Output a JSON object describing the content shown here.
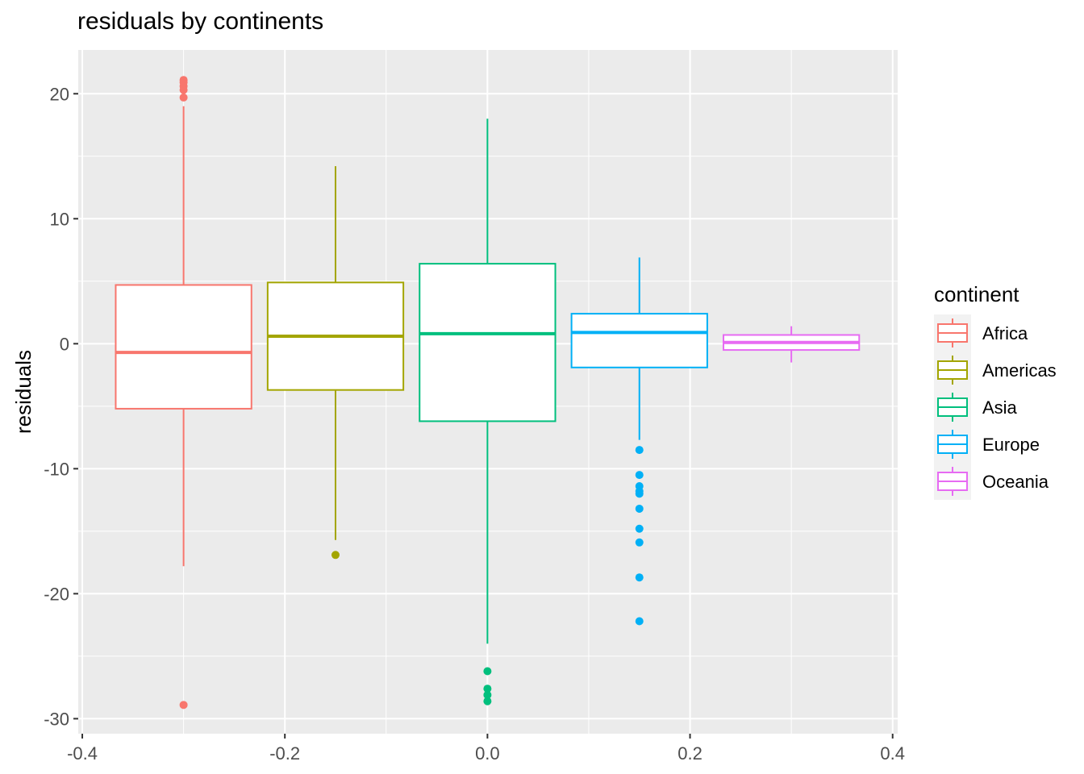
{
  "chart_data": {
    "type": "boxplot",
    "title": "residuals by continents",
    "xlabel": "",
    "ylabel": "residuals",
    "xlim": [
      -0.4,
      0.4
    ],
    "ylim": [
      -30,
      22.7
    ],
    "x_ticks": [
      -0.4,
      -0.2,
      0.0,
      0.2,
      0.4
    ],
    "x_tick_labels": [
      "-0.4",
      "-0.2",
      "0.0",
      "0.2",
      "0.4"
    ],
    "y_ticks": [
      20,
      10,
      0,
      -10,
      -20,
      -30
    ],
    "y_tick_labels": [
      "20",
      "10",
      "0",
      "-10",
      "-20",
      "-30"
    ],
    "grid": true,
    "legend": {
      "title": "continent",
      "position": "right"
    },
    "series": [
      {
        "name": "Africa",
        "color": "#F8766D",
        "x": -0.3,
        "whisker_low": -17.8,
        "q1": -5.2,
        "median": -0.7,
        "q3": 4.7,
        "whisker_high": 19.0,
        "outliers": [
          21.1,
          20.9,
          20.6,
          20.3,
          19.7,
          -28.9
        ]
      },
      {
        "name": "Americas",
        "color": "#A3A500",
        "x": -0.15,
        "whisker_low": -15.7,
        "q1": -3.7,
        "median": 0.6,
        "q3": 4.9,
        "whisker_high": 14.2,
        "outliers": [
          -16.9
        ]
      },
      {
        "name": "Asia",
        "color": "#00BF7D",
        "x": 0.0,
        "whisker_low": -24.0,
        "q1": -6.2,
        "median": 0.8,
        "q3": 6.4,
        "whisker_high": 18.0,
        "outliers": [
          -26.2,
          -27.6,
          -28.1,
          -28.6
        ]
      },
      {
        "name": "Europe",
        "color": "#00B0F6",
        "x": 0.15,
        "whisker_low": -7.7,
        "q1": -1.9,
        "median": 0.9,
        "q3": 2.4,
        "whisker_high": 6.9,
        "outliers": [
          -8.5,
          -10.5,
          -11.4,
          -11.8,
          -12.0,
          -13.2,
          -14.8,
          -15.9,
          -18.7,
          -22.2
        ]
      },
      {
        "name": "Oceania",
        "color": "#E76BF3",
        "x": 0.3,
        "whisker_low": -1.5,
        "q1": -0.5,
        "median": 0.1,
        "q3": 0.7,
        "whisker_high": 1.4,
        "outliers": []
      }
    ]
  }
}
